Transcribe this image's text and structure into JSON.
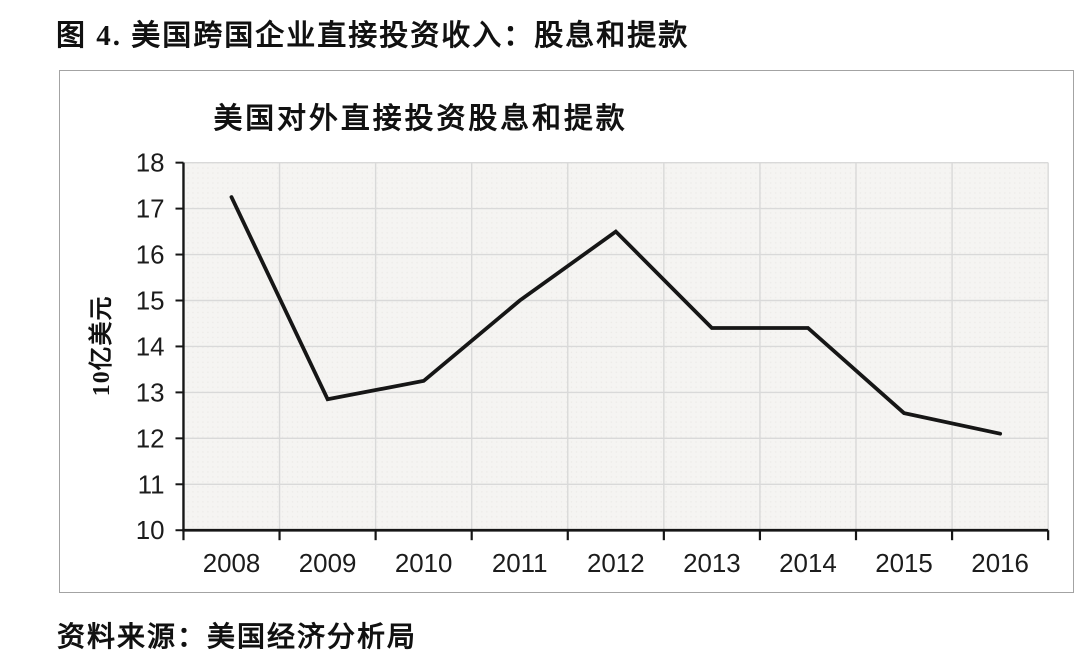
{
  "figure": {
    "title": "图 4. 美国跨国企业直接投资收入：股息和提款",
    "source": "资料来源：美国经济分析局"
  },
  "chart_data": {
    "type": "line",
    "title": "美国对外直接投资股息和提款",
    "xlabel": "",
    "ylabel": "10亿美元",
    "categories": [
      "2008",
      "2009",
      "2010",
      "2011",
      "2012",
      "2013",
      "2014",
      "2015",
      "2016"
    ],
    "values": [
      17.25,
      12.85,
      13.25,
      15.0,
      16.5,
      14.4,
      14.4,
      12.55,
      12.1
    ],
    "ylim": [
      10,
      18
    ],
    "ytick_step": 1,
    "grid": true,
    "legend": "none",
    "colors": {
      "line": "#161616",
      "axis": "#161616",
      "grid": "#d9d9d9",
      "plot_bg": "#f5f4f2",
      "plot_bg_dot": "#eceae7",
      "text": "#1c1c1c",
      "box_border": "#a3a3a3"
    }
  }
}
